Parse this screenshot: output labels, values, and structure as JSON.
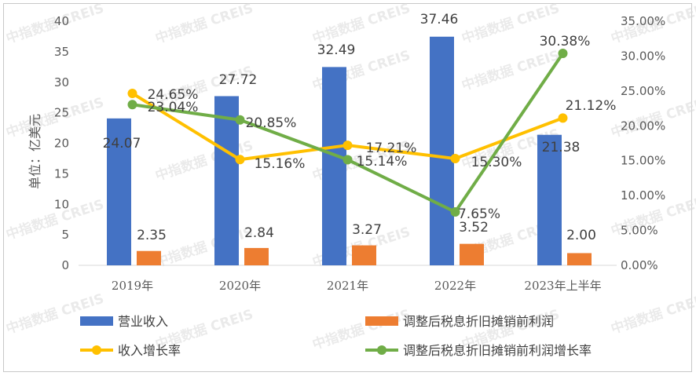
{
  "chart_data": {
    "type": "bar+line",
    "categories": [
      "2019年",
      "2020年",
      "2021年",
      "2022年",
      "2023年上半年"
    ],
    "ylabel_left": "单位：亿美元",
    "ylim_left": [
      0,
      40
    ],
    "yticks_left": [
      "0",
      "5",
      "10",
      "15",
      "20",
      "25",
      "30",
      "35",
      "40"
    ],
    "ylim_right": [
      0,
      35
    ],
    "yticks_right": [
      "0.00%",
      "5.00%",
      "10.00%",
      "15.00%",
      "20.00%",
      "25.00%",
      "30.00%",
      "35.00%"
    ],
    "legend_position": "bottom",
    "series": [
      {
        "name": "营业收入",
        "type": "bar",
        "axis": "left",
        "color": "#4472C4",
        "values": [
          24.07,
          27.72,
          32.49,
          37.46,
          21.38
        ],
        "labels": [
          "24.07",
          "27.72",
          "32.49",
          "37.46",
          "21.38"
        ]
      },
      {
        "name": "调整后税息折旧摊销前利润",
        "type": "bar",
        "axis": "left",
        "color": "#ED7D31",
        "values": [
          2.35,
          2.84,
          3.27,
          3.52,
          2.0
        ],
        "labels": [
          "2.35",
          "2.84",
          "3.27",
          "3.52",
          "2.00"
        ]
      },
      {
        "name": "收入增长率",
        "type": "line",
        "axis": "right",
        "color": "#FFC000",
        "values": [
          24.65,
          15.16,
          17.21,
          15.3,
          21.12
        ],
        "labels": [
          "24.65%",
          "15.16%",
          "17.21%",
          "15.30%",
          "21.12%"
        ]
      },
      {
        "name": "调整后税息折旧摊销前利润增长率",
        "type": "line",
        "axis": "right",
        "color": "#70AD47",
        "values": [
          23.04,
          20.85,
          15.14,
          7.65,
          30.38
        ],
        "labels": [
          "23.04%",
          "20.85%",
          "15.14%",
          "7.65%",
          "30.38%"
        ]
      }
    ],
    "watermark": "中指数据 CREIS"
  }
}
